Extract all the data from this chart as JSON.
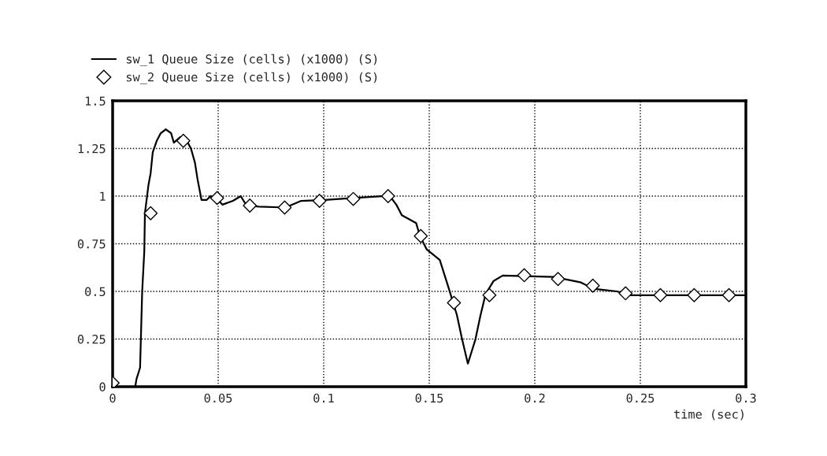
{
  "chart_data": {
    "type": "line",
    "xlabel": "time (sec)",
    "xlim": [
      0,
      0.3
    ],
    "xticks": [
      0,
      0.05,
      0.1,
      0.15,
      0.2,
      0.25,
      0.3
    ],
    "ylim": [
      0,
      1.5
    ],
    "yticks": [
      0,
      0.25,
      0.5,
      0.75,
      1,
      1.25,
      1.5
    ],
    "grid": true,
    "legend": "top left",
    "series": [
      {
        "name": "sw_1 Queue Size (cells) (x1000) (S)",
        "color": "#000000",
        "marker": "none",
        "line_style": "solid",
        "x": [
          0,
          0.002,
          0.0107,
          0.0113,
          0.013,
          0.0134,
          0.014,
          0.015,
          0.0153,
          0.017,
          0.018,
          0.019,
          0.0209,
          0.0228,
          0.0252,
          0.0277,
          0.029,
          0.0321,
          0.0346,
          0.0371,
          0.039,
          0.0402,
          0.0421,
          0.0446,
          0.0464,
          0.0495,
          0.052,
          0.057,
          0.0607,
          0.0626,
          0.0645,
          0.0694,
          0.0819,
          0.0893,
          0.1005,
          0.1142,
          0.129,
          0.1313,
          0.1344,
          0.137,
          0.1438,
          0.1456,
          0.1488,
          0.155,
          0.1593,
          0.1631,
          0.1655,
          0.1683,
          0.1718,
          0.1743,
          0.1767,
          0.1805,
          0.1848,
          0.209,
          0.2215,
          0.2277,
          0.2389,
          0.2451,
          0.2993
        ],
        "values": [
          0.02,
          0.0,
          0.0,
          0.04,
          0.1,
          0.26,
          0.5,
          0.71,
          0.91,
          1.06,
          1.12,
          1.23,
          1.29,
          1.33,
          1.35,
          1.33,
          1.28,
          1.31,
          1.3,
          1.25,
          1.175,
          1.09,
          0.98,
          0.98,
          1.0,
          0.985,
          0.955,
          0.975,
          1.0,
          0.965,
          0.95,
          0.945,
          0.94,
          0.975,
          0.98,
          0.99,
          1.0,
          1.0,
          0.955,
          0.9,
          0.858,
          0.79,
          0.72,
          0.665,
          0.514,
          0.376,
          0.252,
          0.121,
          0.245,
          0.376,
          0.486,
          0.555,
          0.583,
          0.576,
          0.548,
          0.514,
          0.5,
          0.48,
          0.48
        ]
      },
      {
        "name": "sw_2 Queue Size (cells) (x1000) (S)",
        "color": "#000000",
        "type": "scatter",
        "marker": "diamond",
        "x": [
          0.0,
          0.018,
          0.0335,
          0.0495,
          0.065,
          0.0815,
          0.098,
          0.114,
          0.1305,
          0.146,
          0.1617,
          0.1785,
          0.195,
          0.211,
          0.2275,
          0.243,
          0.2595,
          0.2755,
          0.292
        ],
        "values": [
          0.02,
          0.91,
          1.29,
          0.99,
          0.95,
          0.94,
          0.975,
          0.985,
          1.0,
          0.79,
          0.44,
          0.48,
          0.585,
          0.565,
          0.53,
          0.49,
          0.48,
          0.48,
          0.48
        ]
      }
    ]
  }
}
